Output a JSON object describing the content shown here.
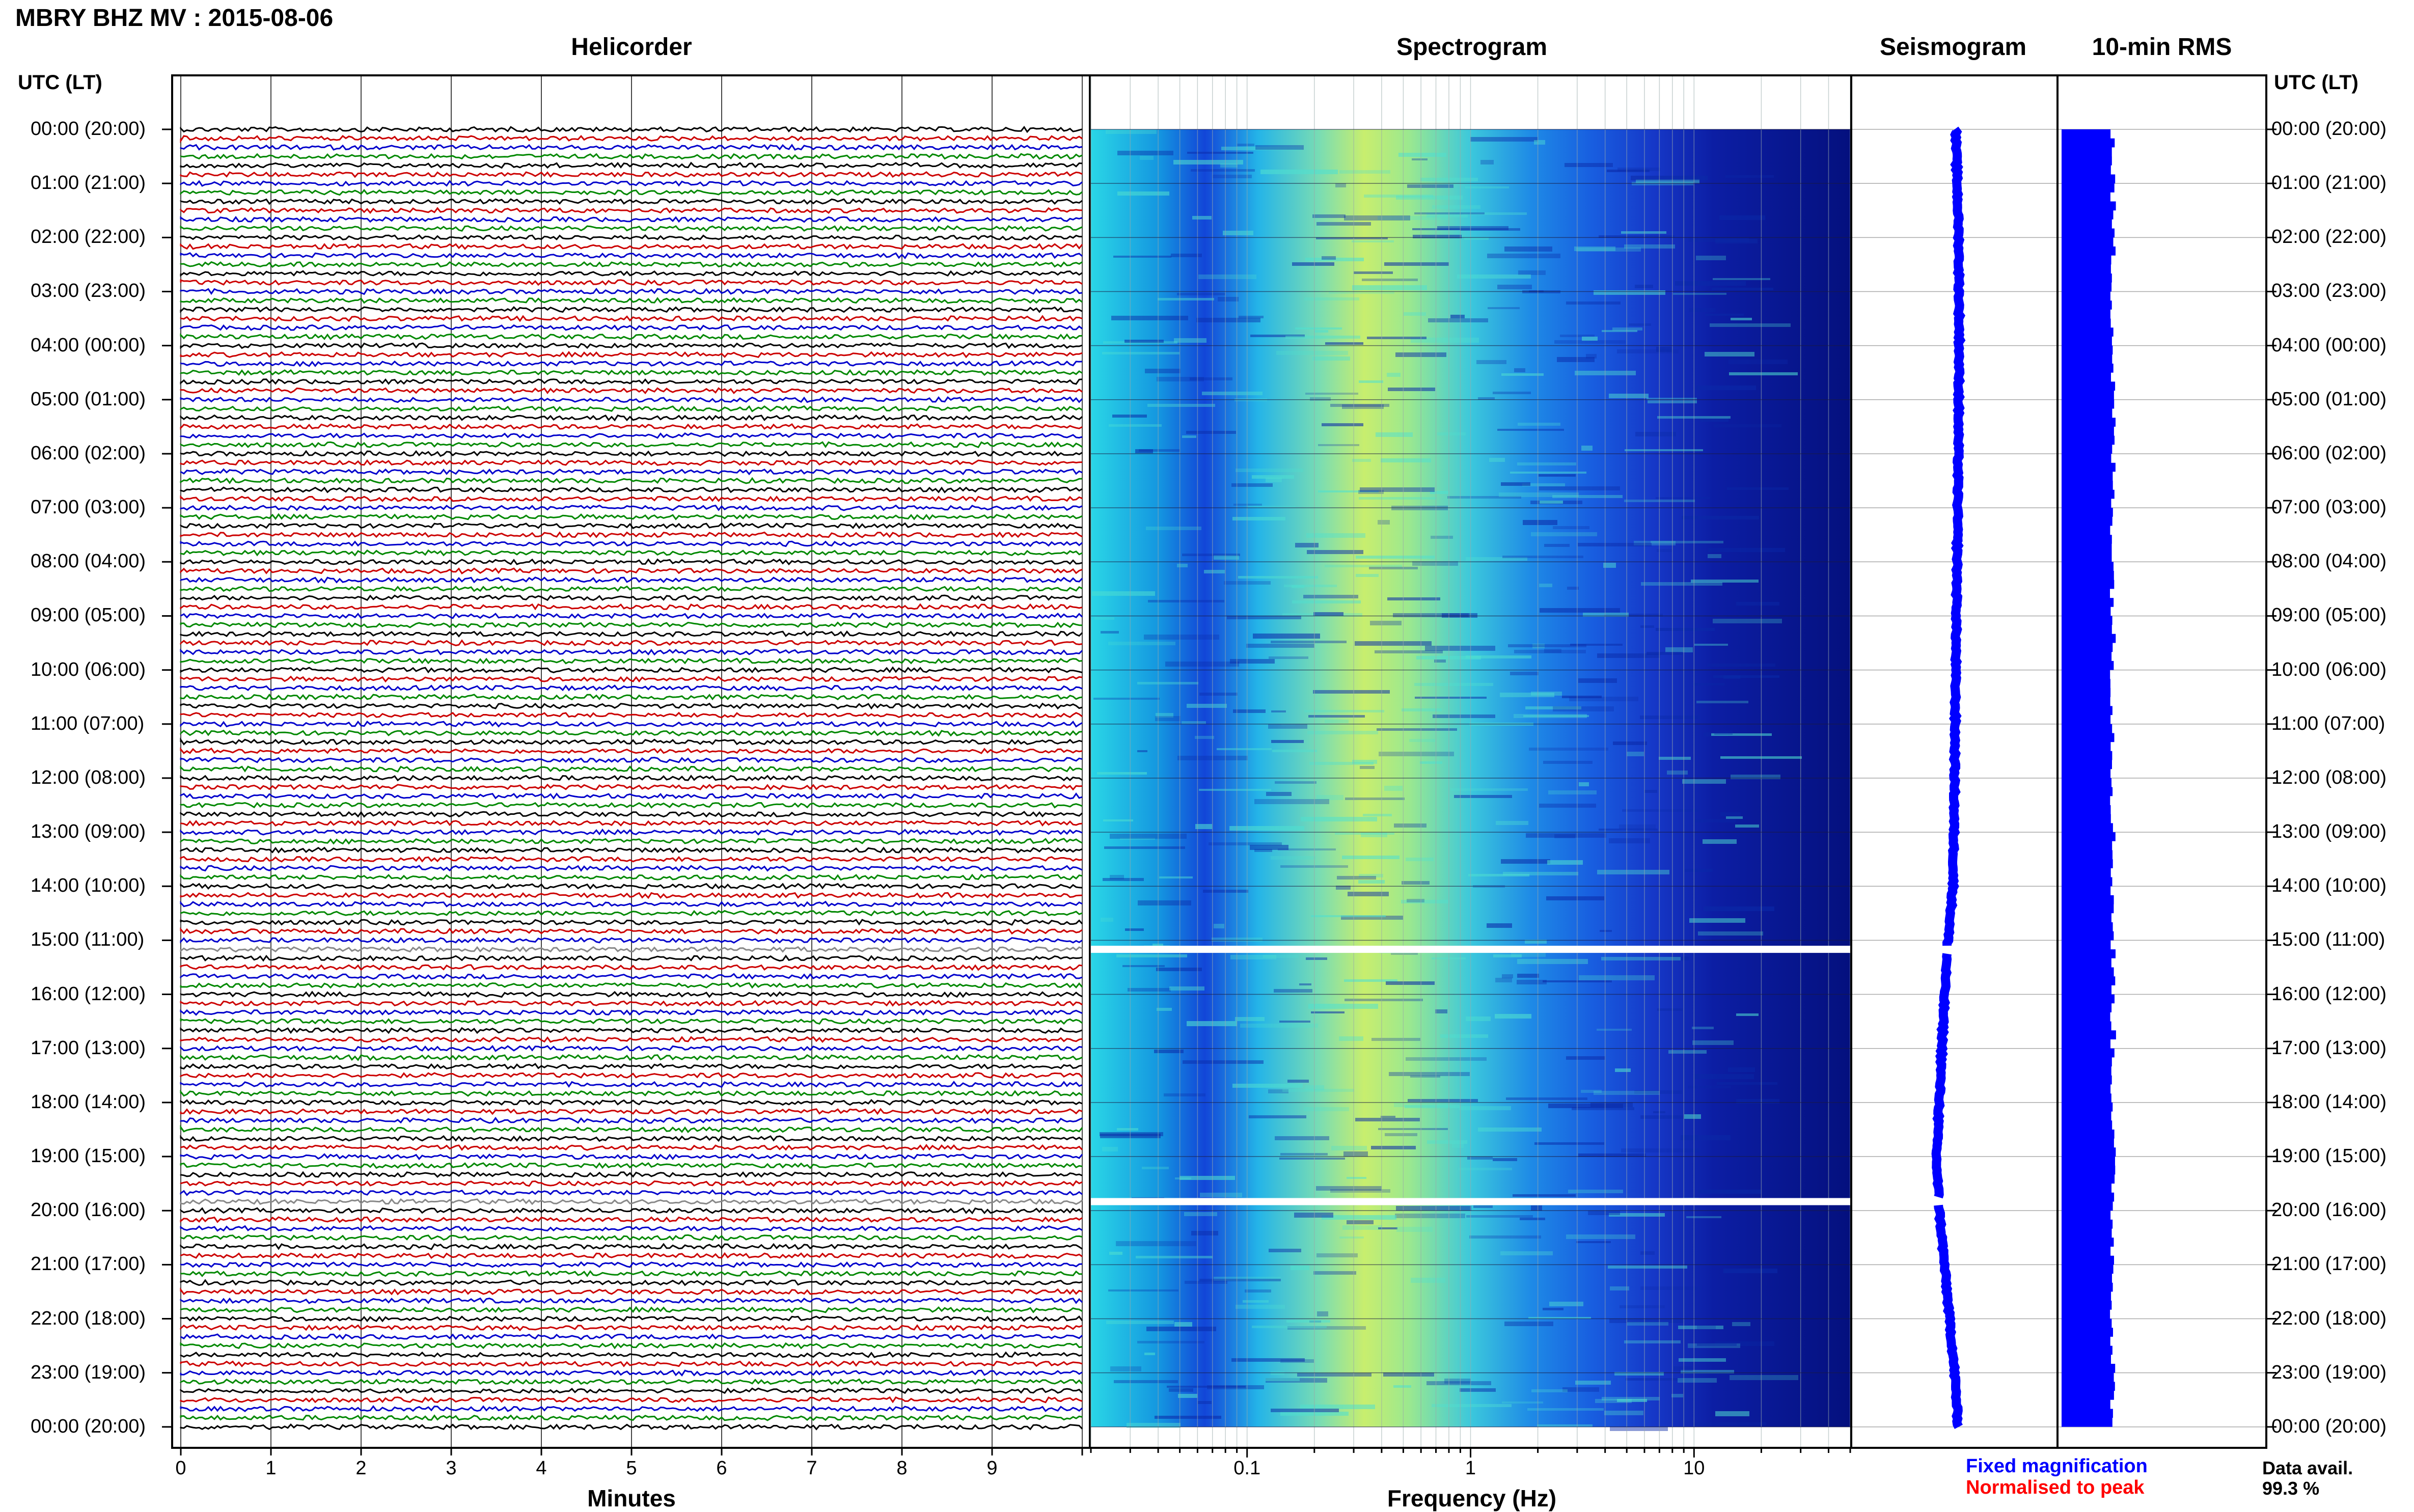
{
  "header": {
    "title": "MBRY BHZ MV : 2015-08-06",
    "left_col_header": "UTC (LT)",
    "right_col_header": "UTC (LT)"
  },
  "panels": {
    "helicorder": "Helicorder",
    "spectrogram": "Spectrogram",
    "seismogram": "Seismogram",
    "rms": "10-min RMS"
  },
  "axes": {
    "minutes_label": "Minutes",
    "frequency_label": "Frequency (Hz)",
    "minutes_ticks": [
      "0",
      "1",
      "2",
      "3",
      "4",
      "5",
      "6",
      "7",
      "8",
      "9"
    ],
    "frequency_ticks": [
      "0.1",
      "1",
      "10"
    ]
  },
  "time_labels": [
    "00:00 (20:00)",
    "01:00 (21:00)",
    "02:00 (22:00)",
    "03:00 (23:00)",
    "04:00 (00:00)",
    "05:00 (01:00)",
    "06:00 (02:00)",
    "07:00 (03:00)",
    "08:00 (04:00)",
    "09:00 (05:00)",
    "10:00 (06:00)",
    "11:00 (07:00)",
    "12:00 (08:00)",
    "13:00 (09:00)",
    "14:00 (10:00)",
    "15:00 (11:00)",
    "16:00 (12:00)",
    "17:00 (13:00)",
    "18:00 (14:00)",
    "19:00 (15:00)",
    "20:00 (16:00)",
    "21:00 (17:00)",
    "22:00 (18:00)",
    "23:00 (19:00)",
    "00:00 (20:00)"
  ],
  "legend": {
    "fixed": "Fixed magnification",
    "normalised": "Normalised to peak",
    "fixed_color": "#0000ff",
    "normalised_color": "#ff0000",
    "data_avail_label": "Data avail.",
    "data_avail_value": "99.3 %"
  },
  "colors": {
    "trace_colors": [
      "#000000",
      "#cc0000",
      "#0000cc",
      "#008800"
    ],
    "seismogram_color": "#0000ff",
    "rms_color": "#0000ff"
  },
  "chart_data": [
    {
      "type": "line",
      "panel": "Helicorder",
      "xlabel": "Minutes",
      "xlim": [
        0,
        10
      ],
      "ylabel": "UTC (LT)",
      "rows_per_hour": 6,
      "gaps_utc": [
        "15:10",
        "19:50"
      ]
    },
    {
      "type": "heatmap",
      "panel": "Spectrogram",
      "xlabel": "Frequency (Hz)",
      "x_scale": "log",
      "xlim": [
        0.02,
        50
      ],
      "peak_frequency_hz": 0.4,
      "gaps_utc": [
        "15:10",
        "19:50"
      ]
    },
    {
      "type": "line",
      "panel": "Seismogram",
      "series": [
        {
          "name": "Fixed magnification"
        }
      ]
    },
    {
      "type": "bar",
      "panel": "10-min RMS",
      "bars_per_day": 144
    }
  ]
}
